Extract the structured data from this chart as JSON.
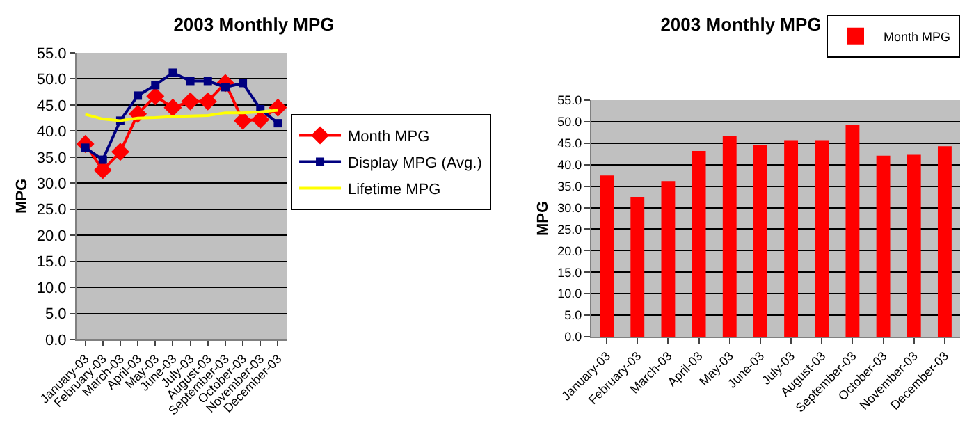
{
  "chart_data": [
    {
      "type": "line",
      "title": "2003 Monthly MPG",
      "ylabel": "MPG",
      "categories": [
        "January-03",
        "February-03",
        "March-03",
        "April-03",
        "May-03",
        "June-03",
        "July-03",
        "August-03",
        "September-03",
        "October-03",
        "November-03",
        "December-03"
      ],
      "series": [
        {
          "name": "Month MPG",
          "color": "#ff0000",
          "marker": "diamond",
          "values": [
            37.5,
            32.5,
            36.0,
            43.3,
            46.7,
            44.5,
            45.7,
            45.7,
            49.2,
            42.0,
            42.2,
            44.5
          ]
        },
        {
          "name": "Display MPG (Avg.)",
          "color": "#000080",
          "marker": "square",
          "values": [
            36.8,
            34.5,
            42.0,
            46.8,
            48.8,
            51.2,
            49.6,
            49.6,
            48.4,
            49.2,
            44.2,
            41.5
          ]
        },
        {
          "name": "Lifetime MPG",
          "color": "#ffff00",
          "marker": "none",
          "values": [
            43.2,
            42.3,
            42.0,
            42.5,
            42.6,
            42.8,
            42.9,
            43.0,
            43.5,
            43.5,
            43.7,
            44.0
          ]
        }
      ],
      "ylim": [
        0,
        55
      ],
      "yticks": [
        {
          "value": 0,
          "label": "0.0"
        },
        {
          "value": 5,
          "label": "5.0"
        },
        {
          "value": 10,
          "label": "10.0"
        },
        {
          "value": 15,
          "label": "15.0"
        },
        {
          "value": 20,
          "label": "20.0"
        },
        {
          "value": 25,
          "label": "25.0"
        },
        {
          "value": 30,
          "label": "30.0"
        },
        {
          "value": 35,
          "label": "35.0"
        },
        {
          "value": 40,
          "label": "40.0"
        },
        {
          "value": 45,
          "label": "45.0"
        },
        {
          "value": 50,
          "label": "50.0"
        },
        {
          "value": 55,
          "label": "55.0"
        }
      ],
      "grid": "y",
      "legend": "right"
    },
    {
      "type": "bar",
      "title": "2003 Monthly MPG",
      "ylabel": "MPG",
      "categories": [
        "January-03",
        "February-03",
        "March-03",
        "April-03",
        "May-03",
        "June-03",
        "July-03",
        "August-03",
        "September-03",
        "October-03",
        "November-03",
        "December-03"
      ],
      "series": [
        {
          "name": "Month MPG",
          "color": "#ff0000",
          "values": [
            37.5,
            32.5,
            36.2,
            43.2,
            46.7,
            44.6,
            45.7,
            45.7,
            49.2,
            42.1,
            42.3,
            44.3
          ]
        }
      ],
      "ylim": [
        0,
        55
      ],
      "yticks": [
        {
          "value": 0,
          "label": "0.0"
        },
        {
          "value": 5,
          "label": "5.0"
        },
        {
          "value": 10,
          "label": "10.0"
        },
        {
          "value": 15,
          "label": "15.0"
        },
        {
          "value": 20,
          "label": "20.0"
        },
        {
          "value": 25,
          "label": "25.0"
        },
        {
          "value": 30,
          "label": "30.0"
        },
        {
          "value": 35,
          "label": "35.0"
        },
        {
          "value": 40,
          "label": "40.0"
        },
        {
          "value": 45,
          "label": "45.0"
        },
        {
          "value": 50,
          "label": "50.0"
        },
        {
          "value": 55,
          "label": "55.0"
        }
      ],
      "grid": "y",
      "legend": "top right"
    }
  ]
}
